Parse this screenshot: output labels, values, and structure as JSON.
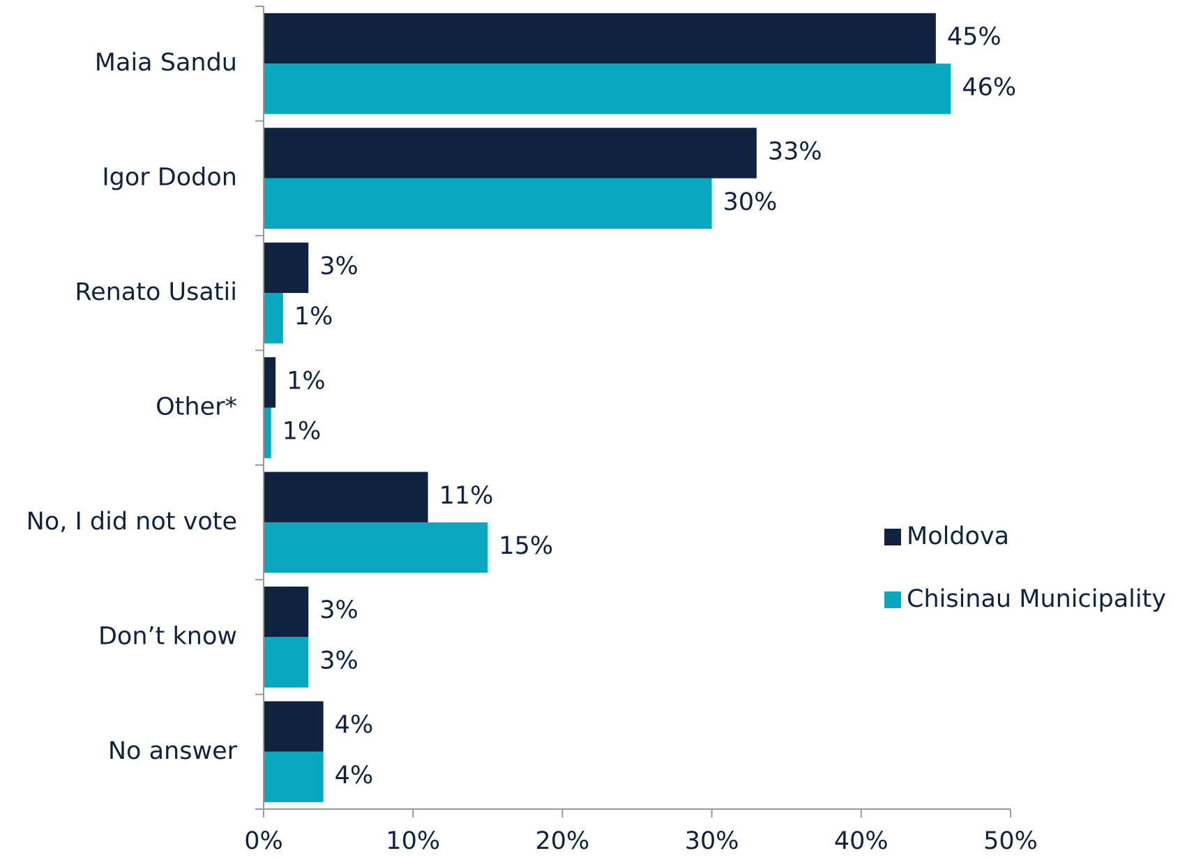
{
  "chart_data": {
    "type": "hbar",
    "categories": [
      "Maia Sandu",
      "Igor Dodon",
      "Renato Usatii",
      "Other*",
      "No, I did not vote",
      "Don’t know",
      "No answer"
    ],
    "series": [
      {
        "name": "Moldova",
        "color": "#0f2340",
        "values": [
          45,
          33,
          3,
          0.8,
          11,
          3,
          4
        ],
        "value_labels": [
          "45%",
          "33%",
          "3%",
          "1%",
          "11%",
          "3%",
          "4%"
        ]
      },
      {
        "name": "Chisinau Municipality",
        "color": "#0aa8c0",
        "values": [
          46,
          30,
          1.3,
          0.5,
          15,
          3,
          4
        ],
        "value_labels": [
          "46%",
          "30%",
          "1%",
          "1%",
          "15%",
          "3%",
          "4%"
        ]
      }
    ],
    "xlim": [
      0,
      50
    ],
    "xticks": [
      {
        "value": 0,
        "label": "0%"
      },
      {
        "value": 10,
        "label": "10%"
      },
      {
        "value": 20,
        "label": "20%"
      },
      {
        "value": 30,
        "label": "30%"
      },
      {
        "value": 40,
        "label": "40%"
      },
      {
        "value": 50,
        "label": "50%"
      }
    ],
    "legend": "right"
  }
}
